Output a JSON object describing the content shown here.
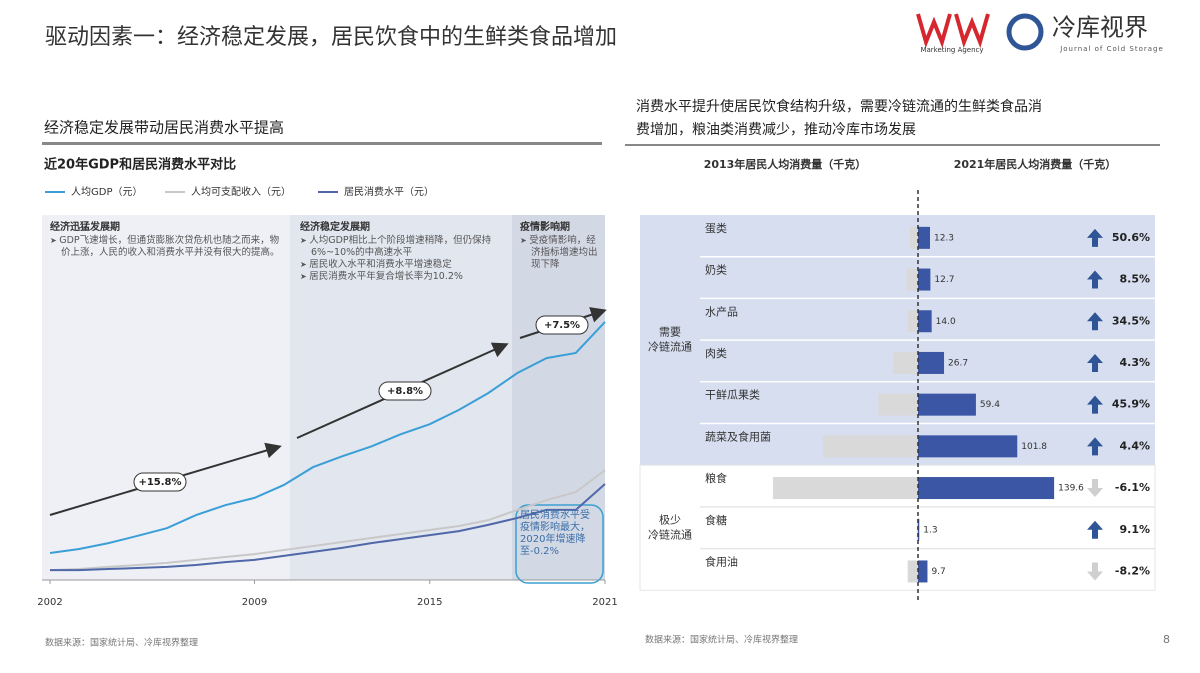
{
  "title": "驱动因素一：经济稳定发展，居民饮食中的生鲜类食品增加",
  "logos": {
    "brand_tagline": "Marketing Agency",
    "journal_name": "冷库视界",
    "journal_subtitle": "Journal of Cold Storage"
  },
  "left_panel": {
    "heading": "经济稳定发展带动居民消费水平提高",
    "source": "数据来源：国家统计局、冷库视界整理"
  },
  "right_panel": {
    "heading_lines": [
      "消费水平提升使居民饮食结构升级，需要冷链流通的生鲜类食品消",
      "费增加，粮油类消费减少，推动冷库市场发展"
    ],
    "source": "数据来源：国家统计局、冷库视界整理"
  },
  "page_number": "8",
  "chart_data": [
    {
      "type": "line",
      "title": "近20年GDP和居民消费水平对比",
      "x": [
        2002,
        2003,
        2004,
        2005,
        2006,
        2007,
        2008,
        2009,
        2010,
        2011,
        2012,
        2013,
        2014,
        2015,
        2016,
        2017,
        2018,
        2019,
        2020,
        2021
      ],
      "xlim": [
        2002,
        2021
      ],
      "xticks": [
        2002,
        2009,
        2015,
        2021
      ],
      "ylim": [
        0,
        100
      ],
      "series": [
        {
          "name": "人均GDP（元）",
          "color": "#3a9fd6",
          "values": [
            7.4,
            8.5,
            10.1,
            12.1,
            14.2,
            17.8,
            20.5,
            22.5,
            26.0,
            30.9,
            33.9,
            36.6,
            39.9,
            42.7,
            46.6,
            51.2,
            56.7,
            60.8,
            62.2,
            70.7
          ]
        },
        {
          "name": "人均可支配收入（元）",
          "color": "#c8c8c8",
          "values": [
            2.7,
            3.0,
            3.6,
            4.1,
            4.7,
            5.5,
            6.3,
            7.1,
            8.2,
            9.3,
            10.4,
            11.5,
            12.6,
            13.7,
            14.8,
            16.4,
            19.2,
            21.9,
            24.1,
            30.1
          ]
        },
        {
          "name": "居民消费水平（元）",
          "color": "#5068a8",
          "values": [
            2.7,
            2.7,
            3.0,
            3.3,
            3.6,
            4.1,
            4.9,
            5.5,
            6.6,
            7.7,
            8.8,
            10.1,
            11.2,
            12.3,
            13.4,
            15.1,
            17.0,
            19.2,
            19.2,
            26.3
          ]
        }
      ],
      "periods": [
        {
          "title": "经济迅猛发展期",
          "bullets": [
            "GDP飞速增长，但通货膨胀次贷危机也随之而来，物价上涨，人民的收入和消费水平并没有很大的提高。"
          ]
        },
        {
          "title": "经济稳定发展期",
          "bullets": [
            "人均GDP相比上个阶段增速稍降，但仍保持6%~10%的中高速水平",
            "居民收入水平和消费水平增速稳定",
            "居民消费水平年复合增长率为10.2%"
          ]
        },
        {
          "title": "疫情影响期",
          "bullets": [
            "受疫情影响，经济指标增速均出现下降"
          ]
        }
      ],
      "growth_labels": [
        "+15.8%",
        "+8.8%",
        "+7.5%"
      ],
      "callout": "居民消费水平受疫情影响最大，2020年增速降至-0.2%"
    },
    {
      "type": "butterfly-bar",
      "groups": [
        {
          "label": [
            "需要",
            "冷链流通"
          ],
          "categories": [
            "蛋类",
            "奶类",
            "水产品",
            "肉类",
            "干鲜瓜果类",
            "蔬菜及食用菌"
          ]
        },
        {
          "label": [
            "极少",
            "冷链流通"
          ],
          "categories": [
            "粮食",
            "食糖",
            "食用油"
          ]
        }
      ],
      "series": [
        {
          "name": "2013年居民人均消费量（千克）",
          "color": "#d9d9d9",
          "values": [
            8.2,
            11.7,
            10.4,
            25.6,
            40.7,
            97.5,
            148.7,
            1.2,
            10.6
          ]
        },
        {
          "name": "2021年居民人均消费量（千克）",
          "color": "#3a56a4",
          "values": [
            12.3,
            12.7,
            14.0,
            26.7,
            59.4,
            101.8,
            139.6,
            1.3,
            9.7
          ],
          "value_labels": [
            "12.3",
            "12.7",
            "14.0",
            "26.7",
            "59.4",
            "101.8",
            "139.6",
            "1.3",
            "9.7"
          ]
        }
      ],
      "change": {
        "values": [
          50.6,
          8.5,
          34.5,
          4.3,
          45.9,
          4.4,
          -6.1,
          9.1,
          -8.2
        ],
        "value_labels": [
          "50.6%",
          "8.5%",
          "34.5%",
          "4.3%",
          "45.9%",
          "4.4%",
          "-6.1%",
          "9.1%",
          "-8.2%"
        ],
        "up_color": "#2f5597",
        "down_color": "#cfcfcf"
      }
    }
  ]
}
